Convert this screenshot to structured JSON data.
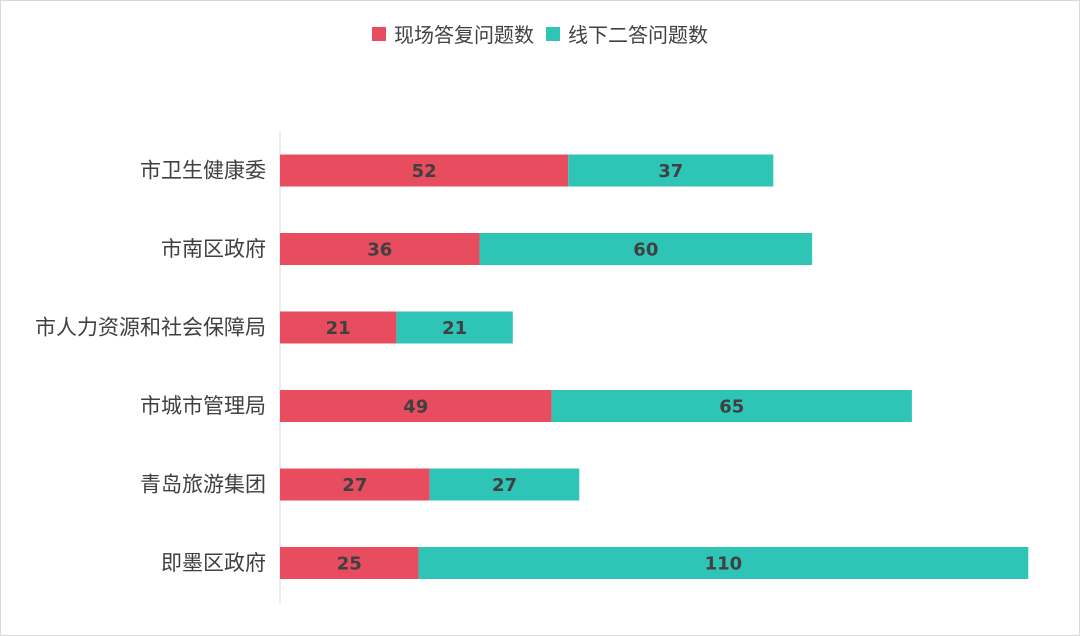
{
  "chart_data": {
    "type": "bar",
    "orientation": "horizontal",
    "stacked": true,
    "title": "",
    "xlabel": "",
    "ylabel": "",
    "xlim": [
      0,
      140
    ],
    "grid": false,
    "legend_position": "top-center",
    "categories": [
      "市卫生健康委",
      "市南区政府",
      "市人力资源和社会保障局",
      "市城市管理局",
      "青岛旅游集团",
      "即墨区政府"
    ],
    "series": [
      {
        "name": "现场答复问题数",
        "color": "#e84c5f",
        "values": [
          52,
          36,
          21,
          49,
          27,
          25
        ]
      },
      {
        "name": "线下二答问题数",
        "color": "#2ec4b6",
        "values": [
          37,
          60,
          21,
          65,
          27,
          110
        ]
      }
    ]
  }
}
